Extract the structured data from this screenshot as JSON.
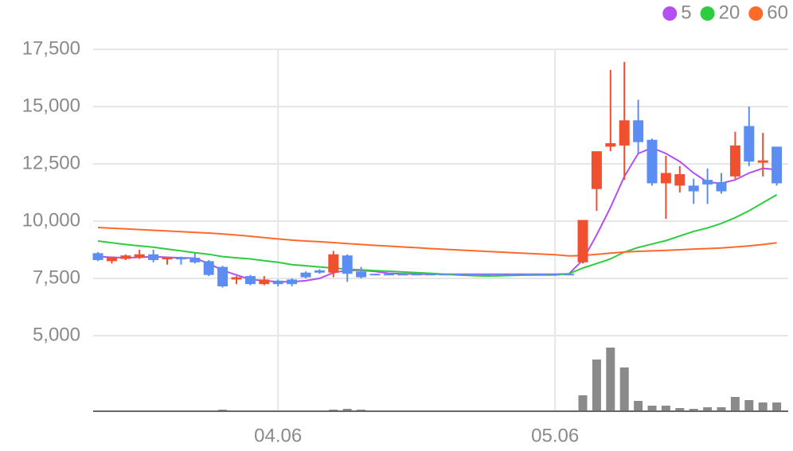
{
  "chart_data": {
    "type": "candlestick",
    "categories": [
      null,
      null,
      null,
      null,
      null,
      null,
      null,
      null,
      null,
      null,
      null,
      null,
      null,
      "04.06",
      null,
      null,
      null,
      null,
      null,
      null,
      null,
      null,
      null,
      null,
      null,
      null,
      null,
      null,
      null,
      null,
      null,
      null,
      null,
      "05.06",
      null,
      null,
      null,
      null,
      null,
      null,
      null,
      null,
      null,
      null,
      null,
      null,
      null,
      null,
      null,
      null
    ],
    "open": [
      8600,
      8250,
      8350,
      8400,
      8550,
      8350,
      8400,
      8400,
      8250,
      8000,
      7450,
      7600,
      7250,
      7400,
      7450,
      7750,
      7850,
      7750,
      8500,
      7800,
      7700,
      7700,
      7700,
      7700,
      7700,
      7700,
      7700,
      7700,
      7700,
      7700,
      7700,
      7700,
      7700,
      7700,
      7700,
      8200,
      11400,
      13250,
      13300,
      14400,
      13550,
      11650,
      11550,
      11550,
      11800,
      11700,
      11950,
      14150,
      12550,
      13250
    ],
    "high": [
      8650,
      8450,
      8550,
      8750,
      8750,
      8450,
      8450,
      8600,
      8300,
      8050,
      7600,
      7650,
      7600,
      7450,
      7500,
      7800,
      7900,
      8700,
      8550,
      8000,
      7700,
      7700,
      7700,
      7700,
      7700,
      7700,
      7700,
      7700,
      7700,
      7700,
      7700,
      7700,
      7700,
      7700,
      7700,
      10050,
      13050,
      16600,
      16950,
      15300,
      13600,
      12850,
      12400,
      11850,
      12300,
      12100,
      13900,
      15000,
      13850,
      13250
    ],
    "low": [
      8250,
      8150,
      8300,
      8350,
      8200,
      8100,
      8100,
      8150,
      7600,
      7100,
      7250,
      7200,
      7200,
      7150,
      7150,
      7500,
      7700,
      7550,
      7350,
      7500,
      7650,
      7650,
      7650,
      7650,
      7650,
      7650,
      7650,
      7650,
      7650,
      7650,
      7650,
      7650,
      7650,
      7650,
      7650,
      8150,
      10450,
      13050,
      11800,
      12950,
      11550,
      10100,
      11250,
      10750,
      10750,
      11200,
      11850,
      12400,
      11950,
      11550
    ],
    "close": [
      8300,
      8400,
      8500,
      8550,
      8300,
      8400,
      8350,
      8200,
      7650,
      7150,
      7550,
      7250,
      7450,
      7250,
      7250,
      7550,
      7750,
      8550,
      7700,
      7550,
      7650,
      7650,
      7650,
      7650,
      7650,
      7650,
      7650,
      7650,
      7650,
      7650,
      7650,
      7650,
      7650,
      7650,
      7650,
      10050,
      13050,
      13400,
      14400,
      13450,
      11650,
      12100,
      12050,
      11300,
      11600,
      11300,
      13300,
      12600,
      12650,
      11650
    ],
    "volume": [
      1,
      1,
      1,
      1,
      1,
      1,
      1,
      1,
      1,
      2,
      1,
      1,
      1,
      1,
      1,
      1,
      1,
      2,
      3,
      2,
      1,
      1,
      1,
      1,
      1,
      1,
      1,
      1,
      1,
      1,
      1,
      1,
      1,
      1,
      1,
      20,
      65,
      80,
      55,
      13,
      7,
      7,
      4,
      3,
      5,
      5,
      18,
      14,
      11,
      11
    ],
    "up_color": "#f0502f",
    "down_color": "#5b8df2",
    "volume_color": "#8a8a8a",
    "series": [
      {
        "name": "5",
        "color": "#b44ff0",
        "values": [
          8450,
          8420,
          8400,
          8420,
          8450,
          8420,
          8400,
          8380,
          8150,
          7850,
          7650,
          7450,
          7400,
          7350,
          7350,
          7400,
          7500,
          7750,
          7850,
          7850,
          7800,
          7720,
          7700,
          7690,
          7680,
          7680,
          7680,
          7680,
          7680,
          7680,
          7680,
          7680,
          7680,
          7680,
          7700,
          8300,
          9400,
          10600,
          11950,
          12950,
          13200,
          12950,
          12600,
          12100,
          11700,
          11650,
          11800,
          12100,
          12300,
          12250
        ]
      },
      {
        "name": "20",
        "color": "#2ecc40",
        "values": [
          9130,
          9050,
          8980,
          8920,
          8860,
          8780,
          8700,
          8620,
          8550,
          8450,
          8400,
          8350,
          8270,
          8200,
          8100,
          8050,
          8000,
          7950,
          7900,
          7870,
          7840,
          7810,
          7780,
          7750,
          7720,
          7680,
          7650,
          7620,
          7600,
          7610,
          7630,
          7640,
          7650,
          7650,
          7700,
          7950,
          8150,
          8350,
          8650,
          8850,
          9000,
          9150,
          9350,
          9550,
          9700,
          9900,
          10150,
          10450,
          10800,
          11150
        ]
      },
      {
        "name": "60",
        "color": "#ff6a2b",
        "values": [
          9720,
          9690,
          9660,
          9630,
          9600,
          9570,
          9540,
          9510,
          9480,
          9440,
          9390,
          9340,
          9280,
          9220,
          9170,
          9130,
          9100,
          9060,
          9020,
          8980,
          8940,
          8910,
          8870,
          8840,
          8800,
          8770,
          8740,
          8710,
          8680,
          8650,
          8620,
          8590,
          8560,
          8530,
          8480,
          8500,
          8550,
          8600,
          8650,
          8680,
          8700,
          8720,
          8750,
          8780,
          8800,
          8830,
          8870,
          8920,
          8980,
          9050
        ]
      }
    ],
    "ylim": [
      1700,
      18250
    ],
    "yticks": [
      {
        "value": 5000,
        "label": "5,000"
      },
      {
        "value": 7500,
        "label": "7,500"
      },
      {
        "value": 10000,
        "label": "10,000"
      },
      {
        "value": 12500,
        "label": "12,500"
      },
      {
        "value": 15000,
        "label": "15,000"
      },
      {
        "value": 17500,
        "label": "17,500"
      }
    ],
    "grid": true,
    "legend": "top-right"
  }
}
